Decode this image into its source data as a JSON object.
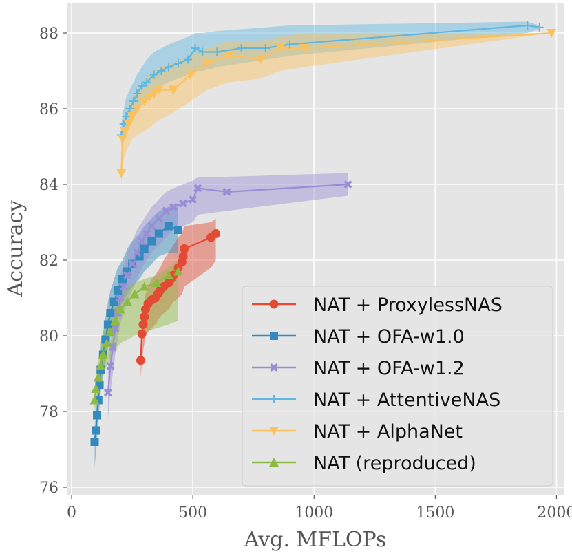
{
  "chart_data": {
    "type": "line",
    "xlabel": "Avg. MFLOPs",
    "ylabel": "Accuracy",
    "xlim": [
      -20,
      2030
    ],
    "ylim": [
      75.8,
      88.8
    ],
    "xticks": [
      0,
      500,
      1000,
      1500,
      2000
    ],
    "yticks": [
      76,
      78,
      80,
      82,
      84,
      86,
      88
    ],
    "xtick_labels": [
      "0",
      "500",
      "1000",
      "1500",
      "2000"
    ],
    "ytick_labels": [
      "76",
      "78",
      "80",
      "82",
      "84",
      "86",
      "88"
    ],
    "grid": true,
    "legend_position": "lower-right",
    "series": [
      {
        "name": "NAT + ProxylessNAS",
        "color": "#E24A33",
        "marker": "circle",
        "x": [
          285,
          290,
          295,
          300,
          305,
          315,
          330,
          345,
          355,
          365,
          380,
          400,
          410,
          420,
          440,
          455,
          460,
          465,
          575,
          595
        ],
        "y": [
          79.35,
          80.05,
          80.3,
          80.5,
          80.7,
          80.85,
          80.95,
          81.0,
          81.1,
          81.2,
          81.3,
          81.4,
          81.5,
          81.6,
          81.8,
          81.95,
          82.1,
          82.3,
          82.6,
          82.7
        ],
        "band_upper": [
          79.4,
          80.2,
          80.6,
          80.9,
          81.1,
          81.3,
          81.5,
          81.6,
          81.7,
          81.8,
          82.0,
          82.2,
          82.3,
          82.4,
          82.6,
          82.7,
          82.8,
          82.9,
          83.0,
          83.1
        ],
        "band_lower": [
          78.9,
          79.3,
          79.6,
          79.8,
          80.0,
          80.1,
          80.2,
          80.3,
          80.4,
          80.5,
          80.6,
          80.7,
          80.8,
          80.9,
          81.0,
          81.1,
          81.2,
          81.3,
          81.8,
          82.0
        ]
      },
      {
        "name": "NAT + OFA-w1.0",
        "color": "#348ABD",
        "marker": "square",
        "x": [
          95,
          100,
          105,
          110,
          115,
          120,
          130,
          140,
          150,
          160,
          175,
          190,
          210,
          230,
          250,
          280,
          300,
          330,
          360,
          400,
          440
        ],
        "y": [
          77.2,
          77.5,
          77.9,
          78.3,
          78.7,
          79.1,
          79.5,
          79.9,
          80.3,
          80.6,
          80.9,
          81.2,
          81.5,
          81.7,
          81.9,
          82.1,
          82.3,
          82.5,
          82.7,
          82.9,
          82.8
        ],
        "band_upper": [
          77.6,
          77.9,
          78.4,
          78.8,
          79.2,
          79.6,
          80.1,
          80.5,
          80.9,
          81.2,
          81.5,
          81.8,
          82.0,
          82.3,
          82.5,
          82.7,
          82.9,
          83.1,
          83.3,
          83.4,
          83.5
        ],
        "band_lower": [
          76.5,
          76.9,
          77.3,
          77.7,
          78.1,
          78.5,
          78.9,
          79.3,
          79.7,
          80.0,
          80.3,
          80.6,
          80.9,
          81.1,
          81.3,
          81.5,
          81.7,
          81.9,
          82.1,
          82.2,
          82.2
        ]
      },
      {
        "name": "NAT + OFA-w1.2",
        "color": "#988ED5",
        "marker": "x",
        "x": [
          150,
          160,
          170,
          180,
          190,
          200,
          215,
          230,
          250,
          270,
          290,
          310,
          330,
          360,
          390,
          420,
          460,
          500,
          520,
          640,
          1140
        ],
        "y": [
          78.5,
          79.2,
          79.7,
          80.2,
          80.6,
          81.0,
          81.3,
          81.6,
          81.9,
          82.2,
          82.5,
          82.7,
          82.9,
          83.1,
          83.3,
          83.4,
          83.5,
          83.6,
          83.9,
          83.8,
          84.0
        ],
        "band_upper": [
          79.0,
          79.8,
          80.3,
          80.8,
          81.2,
          81.6,
          81.9,
          82.2,
          82.5,
          82.8,
          83.0,
          83.2,
          83.4,
          83.6,
          83.8,
          83.9,
          84.0,
          84.1,
          84.2,
          84.2,
          84.3
        ],
        "band_lower": [
          77.8,
          78.5,
          79.0,
          79.5,
          79.9,
          80.3,
          80.6,
          80.9,
          81.2,
          81.5,
          81.8,
          82.0,
          82.2,
          82.4,
          82.6,
          82.8,
          82.9,
          83.0,
          83.2,
          83.3,
          83.7
        ]
      },
      {
        "name": "NAT + AttentiveNAS",
        "color": "#5FB8E0",
        "marker": "plus",
        "x": [
          205,
          215,
          225,
          240,
          255,
          270,
          290,
          310,
          340,
          370,
          400,
          440,
          480,
          510,
          540,
          600,
          700,
          800,
          900,
          1880,
          1930
        ],
        "y": [
          85.3,
          85.6,
          85.8,
          86.0,
          86.2,
          86.4,
          86.6,
          86.7,
          86.9,
          87.0,
          87.1,
          87.2,
          87.3,
          87.6,
          87.5,
          87.5,
          87.6,
          87.6,
          87.7,
          88.2,
          88.15
        ],
        "band_upper": [
          85.6,
          86.0,
          86.3,
          86.5,
          86.7,
          86.9,
          87.1,
          87.3,
          87.5,
          87.6,
          87.7,
          87.8,
          87.9,
          88.0,
          88.0,
          88.05,
          88.1,
          88.15,
          88.2,
          88.3,
          88.2
        ],
        "band_lower": [
          85.0,
          85.2,
          85.4,
          85.6,
          85.8,
          86.0,
          86.2,
          86.3,
          86.5,
          86.6,
          86.7,
          86.8,
          86.9,
          87.0,
          87.0,
          87.1,
          87.2,
          87.3,
          87.4,
          88.0,
          88.1
        ]
      },
      {
        "name": "NAT + AlphaNet",
        "color": "#FBC15E",
        "marker": "triangle-down",
        "x": [
          205,
          210,
          220,
          235,
          250,
          270,
          300,
          320,
          340,
          360,
          420,
          490,
          560,
          650,
          780,
          860,
          960,
          1980
        ],
        "y": [
          84.3,
          85.2,
          85.4,
          85.6,
          85.8,
          86.0,
          86.2,
          86.3,
          86.4,
          86.5,
          86.5,
          86.9,
          87.2,
          87.4,
          87.3,
          87.6,
          87.6,
          88.0
        ],
        "band_upper": [
          84.6,
          85.6,
          85.9,
          86.1,
          86.3,
          86.5,
          86.7,
          86.9,
          87.0,
          87.1,
          87.2,
          87.4,
          87.6,
          87.8,
          87.8,
          87.9,
          88.0,
          88.0
        ],
        "band_lower": [
          84.0,
          84.5,
          84.8,
          85.0,
          85.2,
          85.3,
          85.4,
          85.5,
          85.6,
          85.7,
          85.9,
          86.2,
          86.5,
          86.7,
          86.8,
          87.0,
          87.1,
          88.0
        ]
      },
      {
        "name": "NAT (reproduced)",
        "color": "#8EBA42",
        "marker": "triangle-up",
        "x": [
          95,
          100,
          110,
          120,
          130,
          145,
          160,
          180,
          200,
          230,
          260,
          300,
          350,
          400,
          440
        ],
        "y": [
          78.3,
          78.6,
          78.9,
          79.2,
          79.5,
          79.8,
          80.1,
          80.4,
          80.7,
          80.9,
          81.1,
          81.3,
          81.4,
          81.6,
          81.7
        ],
        "band_upper": [
          78.6,
          79.0,
          79.4,
          79.8,
          80.1,
          80.4,
          80.7,
          80.9,
          81.1,
          81.3,
          81.4,
          81.5,
          81.6,
          81.8,
          82.0
        ],
        "band_lower": [
          77.9,
          78.2,
          78.5,
          78.8,
          79.0,
          79.2,
          79.4,
          79.6,
          79.8,
          79.9,
          80.0,
          80.1,
          80.2,
          80.3,
          80.4
        ]
      }
    ]
  }
}
